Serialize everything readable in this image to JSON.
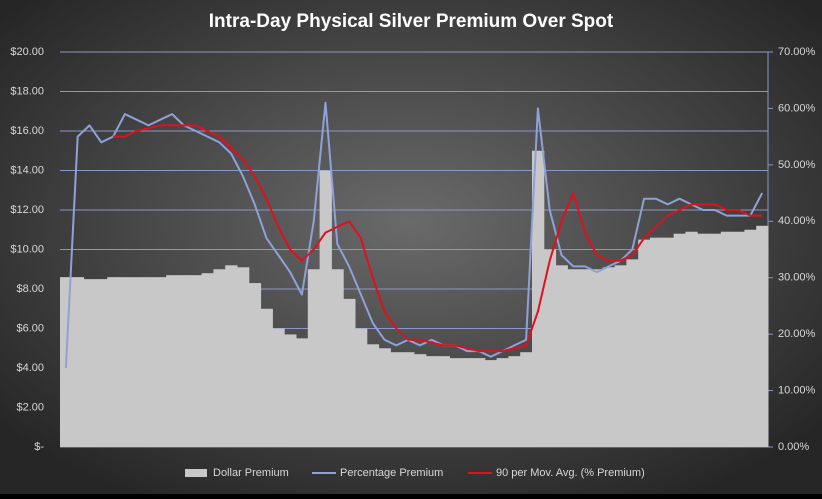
{
  "chart_data": {
    "type": "area-line-combo",
    "title": "Intra-Day  Physical  Silver  Premium  Over  Spot",
    "ylim": [
      0,
      20
    ],
    "yticks": [
      {
        "value": 0,
        "label": "$-"
      },
      {
        "value": 2,
        "label": "$2.00"
      },
      {
        "value": 4,
        "label": "$4.00"
      },
      {
        "value": 6,
        "label": "$6.00"
      },
      {
        "value": 8,
        "label": "$8.00"
      },
      {
        "value": 10,
        "label": "$10.00"
      },
      {
        "value": 12,
        "label": "$12.00"
      },
      {
        "value": 14,
        "label": "$14.00"
      },
      {
        "value": 16,
        "label": "$16.00"
      },
      {
        "value": 18,
        "label": "$18.00"
      },
      {
        "value": 20,
        "label": "$20.00"
      }
    ],
    "y2lim": [
      0,
      70
    ],
    "y2ticks": [
      {
        "value": 0,
        "label": "0.00%"
      },
      {
        "value": 10,
        "label": "10.00%"
      },
      {
        "value": 20,
        "label": "20.00%"
      },
      {
        "value": 30,
        "label": "30.00%"
      },
      {
        "value": 40,
        "label": "40.00%"
      },
      {
        "value": 50,
        "label": "50.00%"
      },
      {
        "value": 60,
        "label": "60.00%"
      },
      {
        "value": 70,
        "label": "70.00%"
      }
    ],
    "grid": true,
    "legend": "bottom",
    "series": [
      {
        "name": "Dollar Premium",
        "color": "#c8c8c8",
        "kind": "area",
        "values": [
          8.6,
          8.6,
          8.5,
          8.5,
          8.6,
          8.6,
          8.6,
          8.6,
          8.6,
          8.7,
          8.7,
          8.7,
          8.8,
          9.0,
          9.2,
          9.1,
          8.3,
          7.0,
          6.0,
          5.7,
          5.5,
          9.0,
          14.0,
          9.0,
          7.5,
          6.0,
          5.2,
          5.0,
          4.8,
          4.8,
          4.7,
          4.6,
          4.6,
          4.5,
          4.5,
          4.5,
          4.4,
          4.5,
          4.6,
          4.8,
          15.0,
          10.0,
          9.2,
          9.0,
          9.0,
          9.0,
          9.1,
          9.2,
          9.5,
          10.5,
          10.6,
          10.6,
          10.8,
          10.9,
          10.8,
          10.8,
          10.9,
          10.9,
          11.0,
          11.2
        ]
      },
      {
        "name": "Percentage Premium",
        "color": "#8ea2d8",
        "kind": "line",
        "axis": "y2",
        "values": [
          14,
          55,
          57,
          54,
          55,
          59,
          58,
          57,
          58,
          59,
          57,
          56,
          55,
          54,
          52,
          48,
          43,
          37,
          34,
          31,
          27,
          40,
          61,
          36,
          32,
          27,
          22,
          19,
          18,
          19,
          18,
          19,
          18,
          18,
          17,
          17,
          16,
          17,
          18,
          19,
          60,
          42,
          34,
          32,
          32,
          31,
          32,
          33,
          35,
          44,
          44,
          43,
          44,
          43,
          42,
          42,
          41,
          41,
          41,
          45
        ]
      },
      {
        "name": "90 per Mov. Avg. (% Premium)",
        "color": "#e0101e",
        "kind": "line",
        "axis": "y2",
        "values": [
          null,
          null,
          null,
          null,
          55,
          55,
          56,
          56.5,
          57,
          57,
          57,
          57,
          56,
          55,
          53,
          51,
          48,
          44,
          39,
          35,
          33,
          35,
          38,
          39,
          40,
          37,
          30,
          24,
          21,
          19,
          19,
          18.5,
          18,
          18,
          17.5,
          17,
          17,
          17,
          17.5,
          18,
          24,
          33,
          40,
          45,
          38,
          34,
          33,
          33,
          34,
          37,
          39,
          41,
          42,
          43,
          43,
          43,
          42,
          42,
          41,
          41
        ]
      }
    ]
  }
}
